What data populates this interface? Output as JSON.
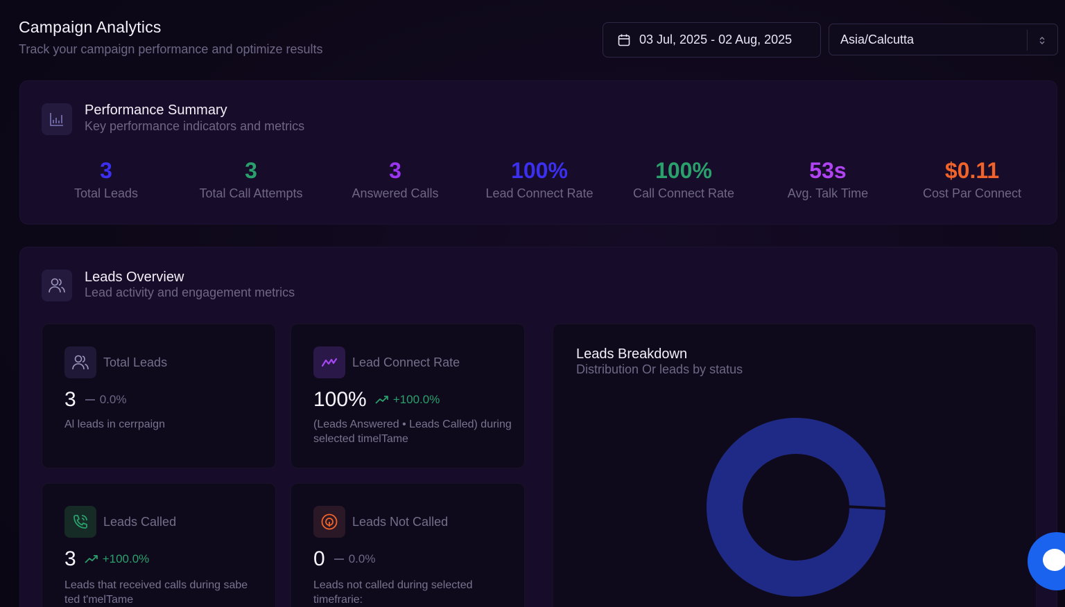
{
  "header": {
    "title": "Campaign Analytics",
    "subtitle": "Track your campaign performance and optimize results"
  },
  "filters": {
    "date_range": "03 Jul, 2025 - 02 Aug, 2025",
    "timezone": "Asia/Calcutta"
  },
  "performance": {
    "title": "Performance Summary",
    "subtitle": "Key performance indicators and metrics",
    "metrics": [
      {
        "value": "3",
        "label": "Total Leads",
        "color": "#3b2ff0"
      },
      {
        "value": "3",
        "label": "Total Call Attempts",
        "color": "#2aa06c"
      },
      {
        "value": "3",
        "label": "Answered Calls",
        "color": "#9a36f0"
      },
      {
        "value": "100%",
        "label": "Lead Connect Rate",
        "color": "#3b2ff0"
      },
      {
        "value": "100%",
        "label": "Call Connect Rate",
        "color": "#2aa06c"
      },
      {
        "value": "53s",
        "label": "Avg. Talk Time",
        "color": "#b043f2"
      },
      {
        "value": "$0.11",
        "label": "Cost Par Connect",
        "color": "#f0632b"
      }
    ]
  },
  "leads_overview": {
    "title": "Leads Overview",
    "subtitle": "Lead activity and engagement metrics",
    "cards": [
      {
        "title": "Total Leads",
        "value": "3",
        "change": "0.0%",
        "change_type": "neutral",
        "desc": "Al leads in cerrpaign"
      },
      {
        "title": "Lead Connect Rate",
        "value": "100%",
        "change": "+100.0%",
        "change_type": "up",
        "desc": "(Leads Answered • Leads Called) during selected timelTame"
      },
      {
        "title": "Leads Called",
        "value": "3",
        "change": "+100.0%",
        "change_type": "up",
        "desc": "Leads that received calls during sabe ted t'melTame"
      },
      {
        "title": "Leads Not Called",
        "value": "0",
        "change": "0.0%",
        "change_type": "neutral",
        "desc": "Leads not called during selected timefrarie:"
      }
    ],
    "breakdown": {
      "title": "Leads Breakdown",
      "subtitle": "Distribution Or leads by status",
      "color": "#1f2a86"
    }
  }
}
